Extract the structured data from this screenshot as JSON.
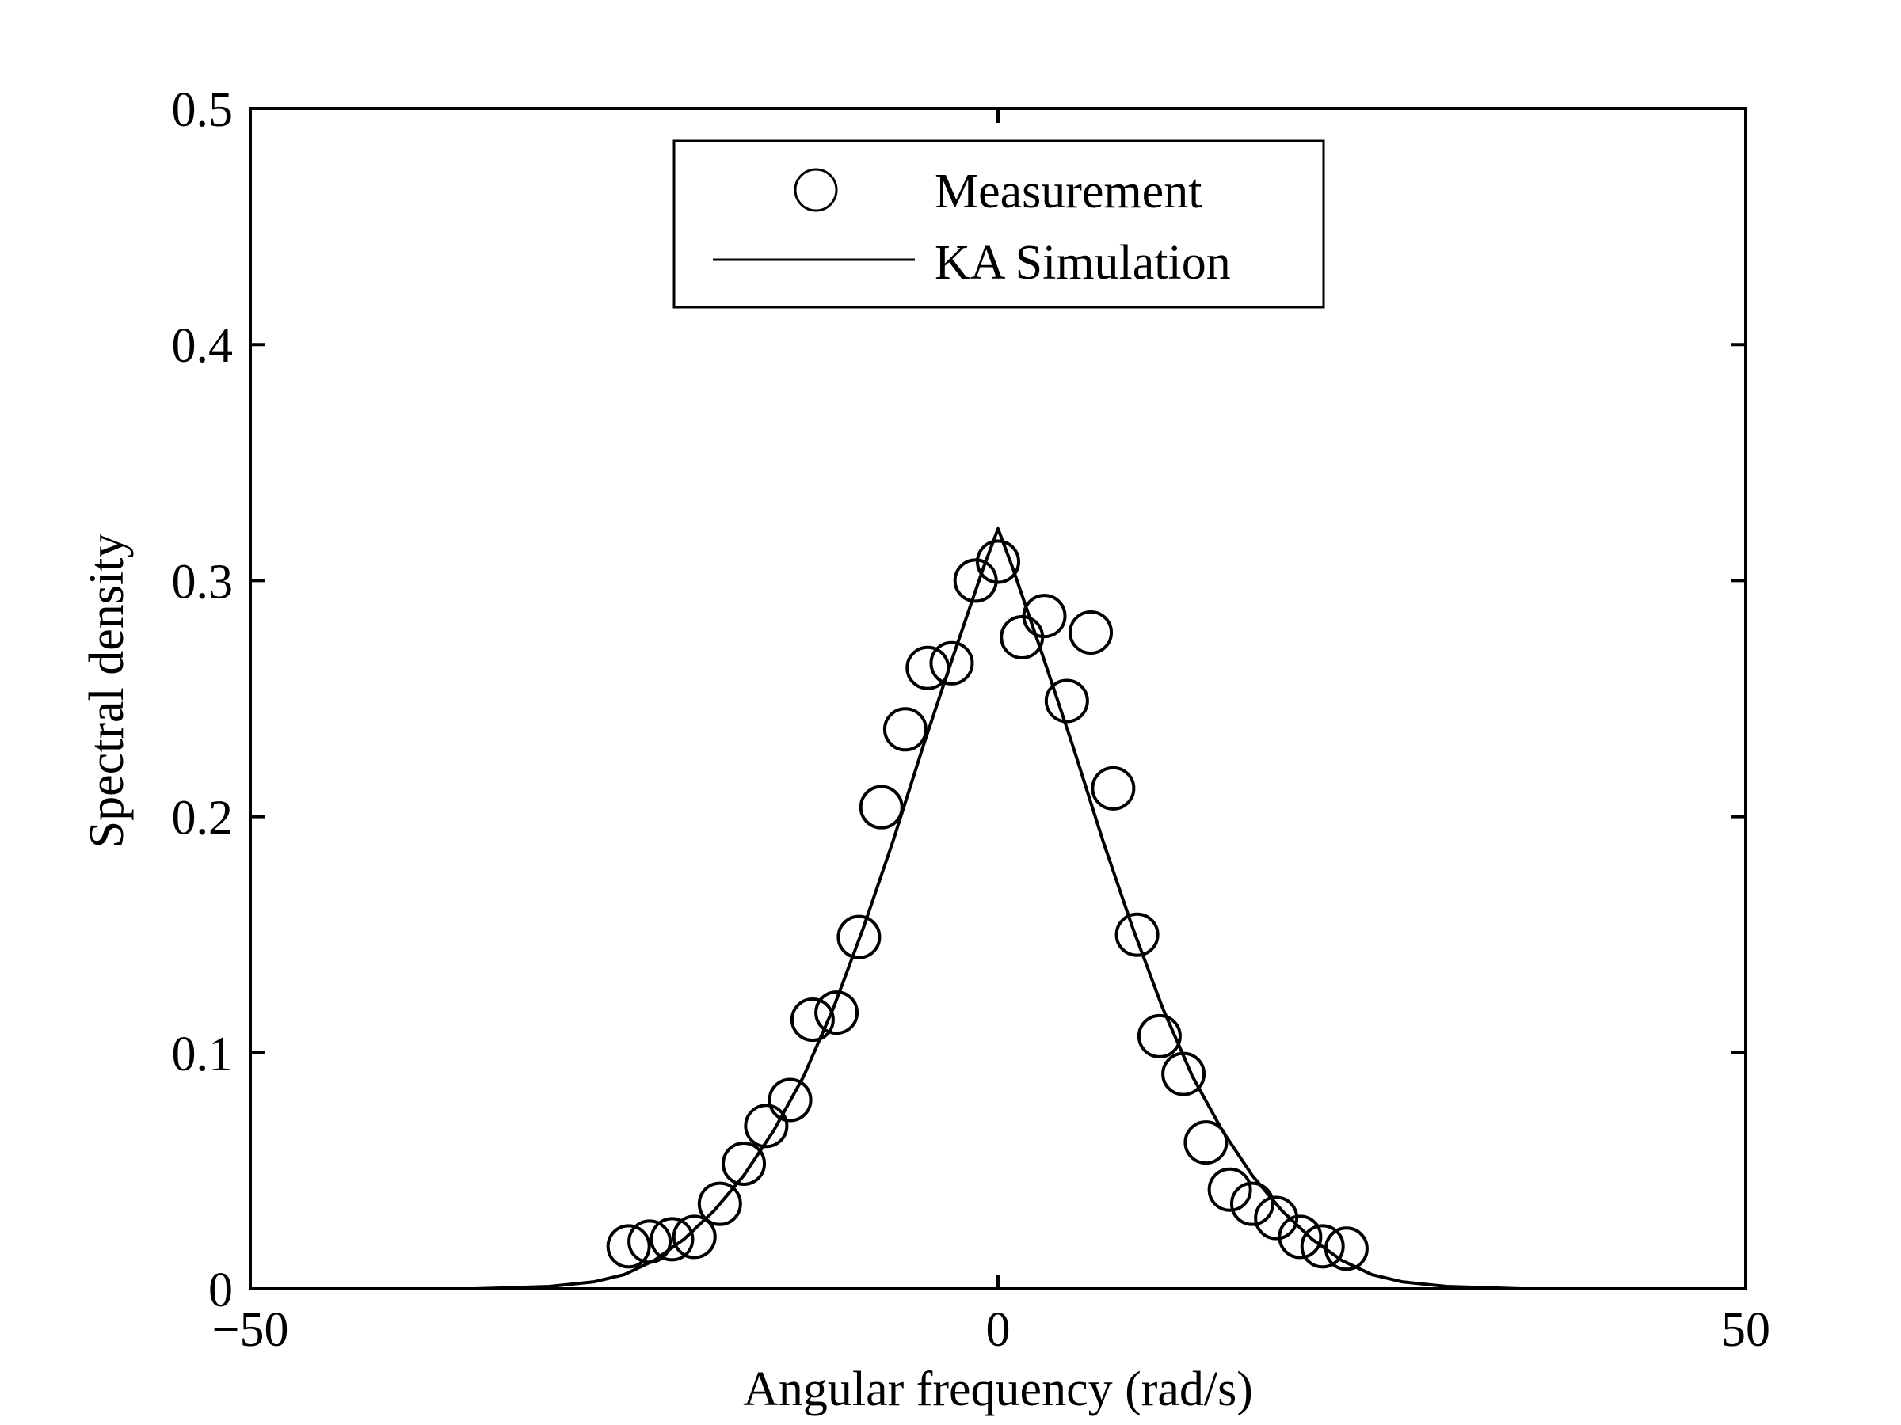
{
  "chart_data": {
    "type": "scatter",
    "title": "",
    "xlabel": "Angular frequency (rad/s)",
    "ylabel": "Spectral density",
    "xlim": [
      -50,
      50
    ],
    "ylim": [
      0,
      0.5
    ],
    "xticks": [
      -50,
      0,
      50
    ],
    "xtick_labels": [
      "−50",
      "0",
      "50"
    ],
    "yticks": [
      0,
      0.1,
      0.2,
      0.3,
      0.4,
      0.5
    ],
    "ytick_labels": [
      "0",
      "0.1",
      "0.2",
      "0.3",
      "0.4",
      "0.5"
    ],
    "grid": false,
    "legend_position": "top-center",
    "colors": {
      "axes": "#000000",
      "series": "#000000",
      "background": "#ffffff"
    },
    "series": [
      {
        "name": "Measurement",
        "style": "markers-circle",
        "x": [
          -24.7,
          -23.3,
          -21.8,
          -20.3,
          -18.6,
          -17.0,
          -15.5,
          -13.9,
          -12.4,
          -10.8,
          -9.3,
          -7.8,
          -6.2,
          -4.7,
          -3.1,
          -1.5,
          0.0,
          1.6,
          3.1,
          4.6,
          6.2,
          7.7,
          9.3,
          10.8,
          12.4,
          13.9,
          15.5,
          17.0,
          18.6,
          20.2,
          21.7,
          23.3
        ],
        "y": [
          0.018,
          0.02,
          0.021,
          0.022,
          0.036,
          0.053,
          0.069,
          0.08,
          0.114,
          0.117,
          0.149,
          0.204,
          0.237,
          0.263,
          0.265,
          0.3,
          0.308,
          0.276,
          0.285,
          0.249,
          0.278,
          0.212,
          0.15,
          0.107,
          0.091,
          0.062,
          0.042,
          0.036,
          0.03,
          0.022,
          0.018,
          0.017
        ]
      },
      {
        "name": "KA Simulation",
        "style": "line",
        "x": [
          -50,
          -35,
          -30,
          -27,
          -25,
          -23,
          -21,
          -19,
          -17,
          -15,
          -13,
          -11,
          -9,
          -7,
          -5,
          -3,
          -1,
          0,
          1,
          3,
          5,
          7,
          9,
          11,
          13,
          15,
          17,
          19,
          21,
          23,
          25,
          27,
          30,
          35,
          50
        ],
        "y": [
          0,
          0,
          0.001,
          0.003,
          0.006,
          0.012,
          0.021,
          0.033,
          0.048,
          0.067,
          0.09,
          0.119,
          0.153,
          0.19,
          0.23,
          0.268,
          0.305,
          0.322,
          0.305,
          0.268,
          0.23,
          0.19,
          0.153,
          0.119,
          0.09,
          0.067,
          0.048,
          0.033,
          0.021,
          0.012,
          0.006,
          0.003,
          0.001,
          0,
          0
        ]
      }
    ]
  }
}
